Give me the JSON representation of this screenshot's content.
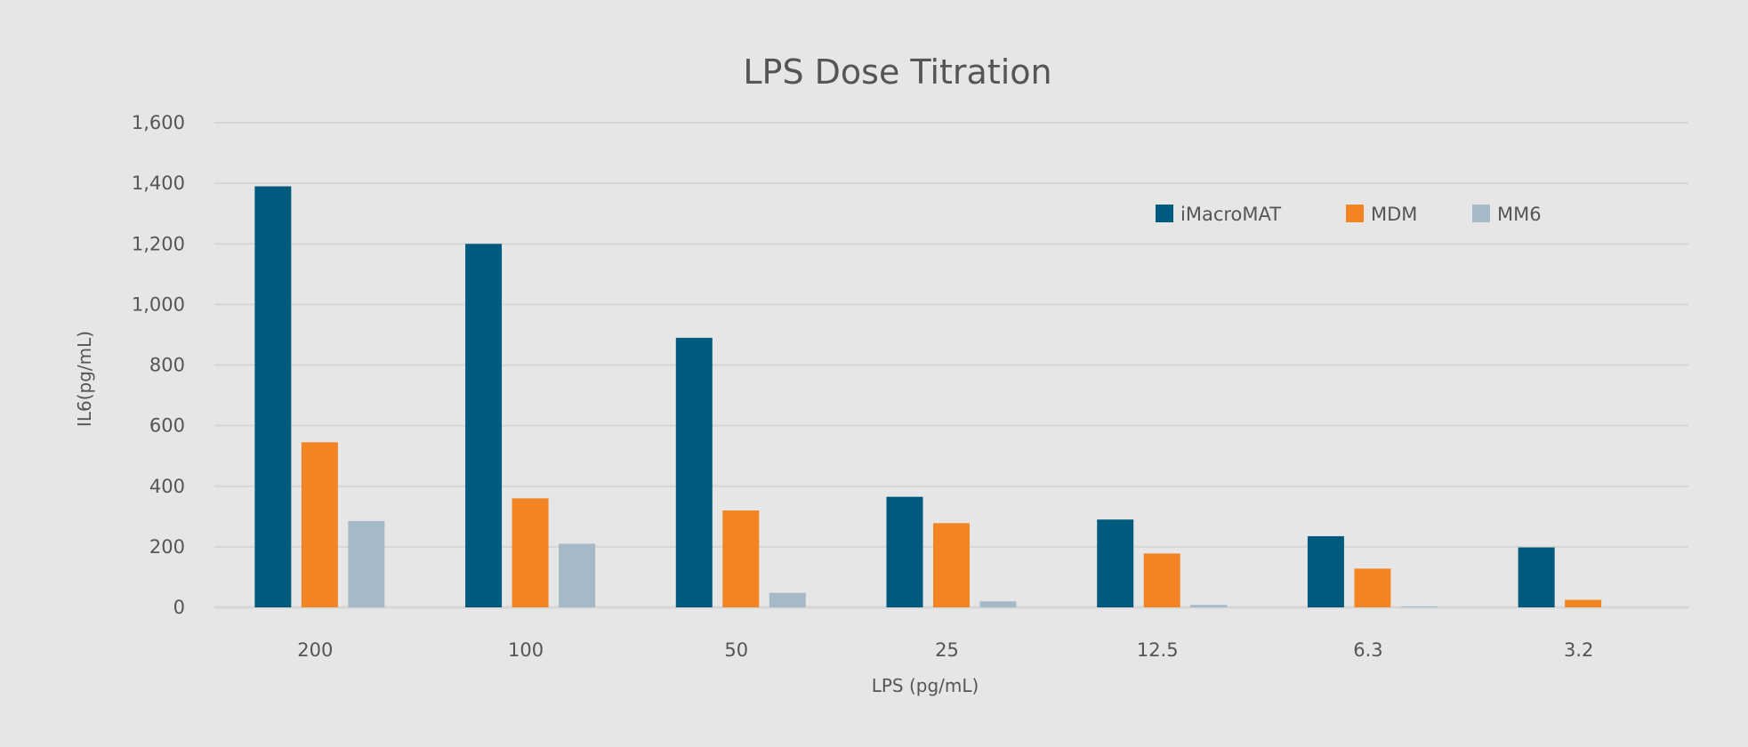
{
  "chart_data": {
    "type": "bar",
    "title": "LPS Dose Titration",
    "xlabel": "LPS (pg/mL)",
    "ylabel": "IL6(pg/mL)",
    "categories": [
      "200",
      "100",
      "50",
      "25",
      "12.5",
      "6.3",
      "3.2"
    ],
    "ylim": [
      0,
      1600
    ],
    "yticks": [
      0,
      200,
      400,
      600,
      800,
      1000,
      1200,
      1400,
      1600
    ],
    "ytick_labels": [
      "0",
      "200",
      "400",
      "600",
      "800",
      "1,000",
      "1,200",
      "1,400",
      "1,600"
    ],
    "grid": true,
    "legend_placement": "top-right",
    "series": [
      {
        "name": "iMacroMAT",
        "color": "#005a7d",
        "values": [
          1390,
          1200,
          890,
          365,
          290,
          235,
          198
        ]
      },
      {
        "name": "MDM",
        "color": "#f38424",
        "values": [
          545,
          360,
          320,
          278,
          178,
          128,
          25
        ]
      },
      {
        "name": "MM6",
        "color": "#a5bac6",
        "values": [
          285,
          210,
          48,
          20,
          8,
          3,
          0
        ]
      }
    ]
  }
}
